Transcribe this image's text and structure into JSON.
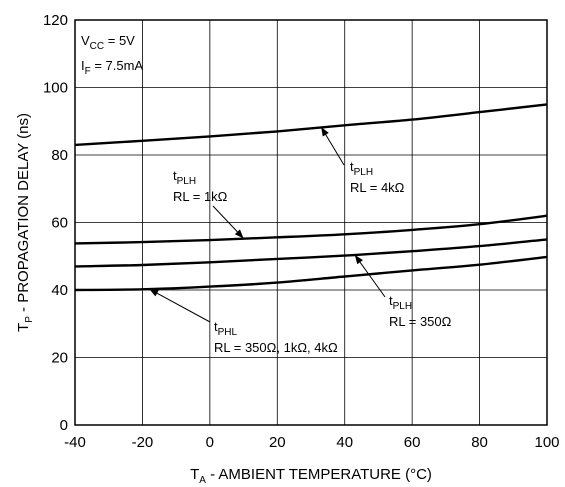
{
  "chart_data": {
    "type": "line",
    "title": "",
    "xlabel": {
      "main": "T",
      "sub": "A",
      "rest": " - AMBIENT TEMPERATURE (°C)"
    },
    "ylabel": {
      "main": "T",
      "sub": "P",
      "rest": " - PROPAGATION DELAY (ns)"
    },
    "xlim": [
      -40,
      100
    ],
    "ylim": [
      0,
      120
    ],
    "xticks": [
      "-40",
      "-20",
      "0",
      "20",
      "40",
      "60",
      "80",
      "100"
    ],
    "yticks": [
      "0",
      "20",
      "40",
      "60",
      "80",
      "100",
      "120"
    ],
    "grid": true,
    "conditions": [
      {
        "main": "V",
        "sub": "CC",
        "rest": " = 5V"
      },
      {
        "main": "I",
        "sub": "F",
        "rest": " = 7.5mA"
      }
    ],
    "x": [
      -40,
      -20,
      0,
      20,
      40,
      60,
      80,
      100
    ],
    "series": [
      {
        "values": [
          83,
          84.2,
          85.5,
          87,
          88.8,
          90.5,
          92.7,
          95
        ]
      },
      {
        "values": [
          53.8,
          54.2,
          54.8,
          55.6,
          56.5,
          57.8,
          59.5,
          62
        ]
      },
      {
        "values": [
          47,
          47.4,
          48.2,
          49.2,
          50.2,
          51.5,
          53,
          55
        ]
      },
      {
        "values": [
          40,
          40.2,
          41,
          42.2,
          44,
          45.8,
          47.5,
          49.8
        ]
      }
    ],
    "annotations": [
      {
        "name": "tplh-4k",
        "lines": [
          {
            "main": "t",
            "sub": "PLH",
            "rest": ""
          },
          {
            "main": "RL = 4kΩ",
            "sub": "",
            "rest": ""
          }
        ],
        "anchor_x": 33,
        "anchor_y": 88.3
      },
      {
        "name": "tplh-1k",
        "lines": [
          {
            "main": "t",
            "sub": "PLH",
            "rest": ""
          },
          {
            "main": "RL = 1kΩ",
            "sub": "",
            "rest": ""
          }
        ],
        "anchor_x": 10,
        "anchor_y": 55.3
      },
      {
        "name": "tplh-350",
        "lines": [
          {
            "main": "t",
            "sub": "PLH",
            "rest": ""
          },
          {
            "main": "RL = 350Ω",
            "sub": "",
            "rest": ""
          }
        ],
        "anchor_x": 43,
        "anchor_y": 50.4
      },
      {
        "name": "tphl",
        "lines": [
          {
            "main": "t",
            "sub": "PHL",
            "rest": ""
          },
          {
            "main": "RL = 350Ω, 1kΩ, 4kΩ",
            "sub": "",
            "rest": ""
          }
        ],
        "anchor_x": -18,
        "anchor_y": 40.3
      }
    ]
  }
}
